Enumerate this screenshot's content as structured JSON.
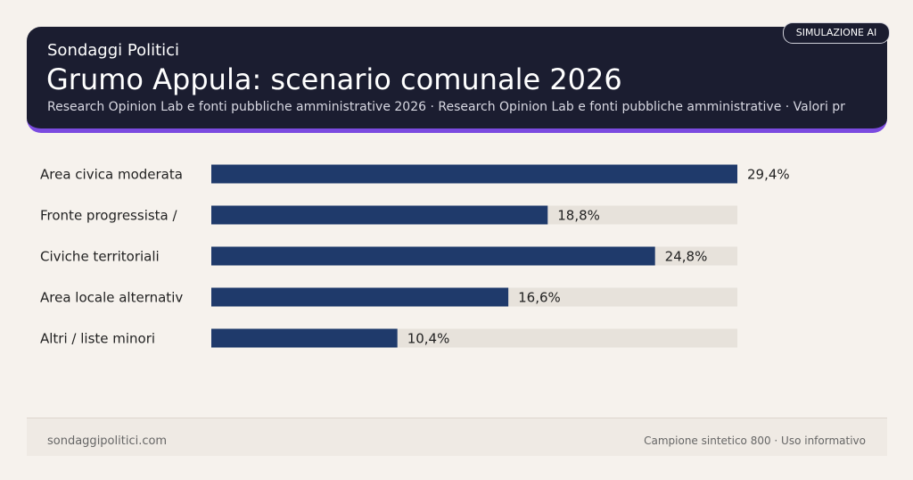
{
  "header": {
    "kicker": "Sondaggi Politici",
    "title": "Grumo Appula: scenario comunale 2026",
    "subtitle": "Research Opinion Lab e fonti pubbliche amministrative 2026 · Research Opinion Lab e fonti pubbliche amministrative · Valori pr",
    "badge": "SIMULAZIONE AI"
  },
  "chart_data": {
    "type": "bar",
    "categories": [
      "Area civica moderata",
      "Fronte progressista /",
      "Civiche territoriali",
      "Area locale alternativ",
      "Altri / liste minori"
    ],
    "values": [
      29.4,
      18.8,
      24.8,
      16.6,
      10.4
    ],
    "value_labels": [
      "29,4%",
      "18,8%",
      "24,8%",
      "16,6%",
      "10,4%"
    ],
    "xlim": [
      0,
      29.4
    ],
    "color": "#1f3a6b",
    "track_color": "#e7e2db"
  },
  "footer": {
    "left": "sondaggipolitici.com",
    "right": "Campione sintetico 800 · Uso informativo"
  }
}
